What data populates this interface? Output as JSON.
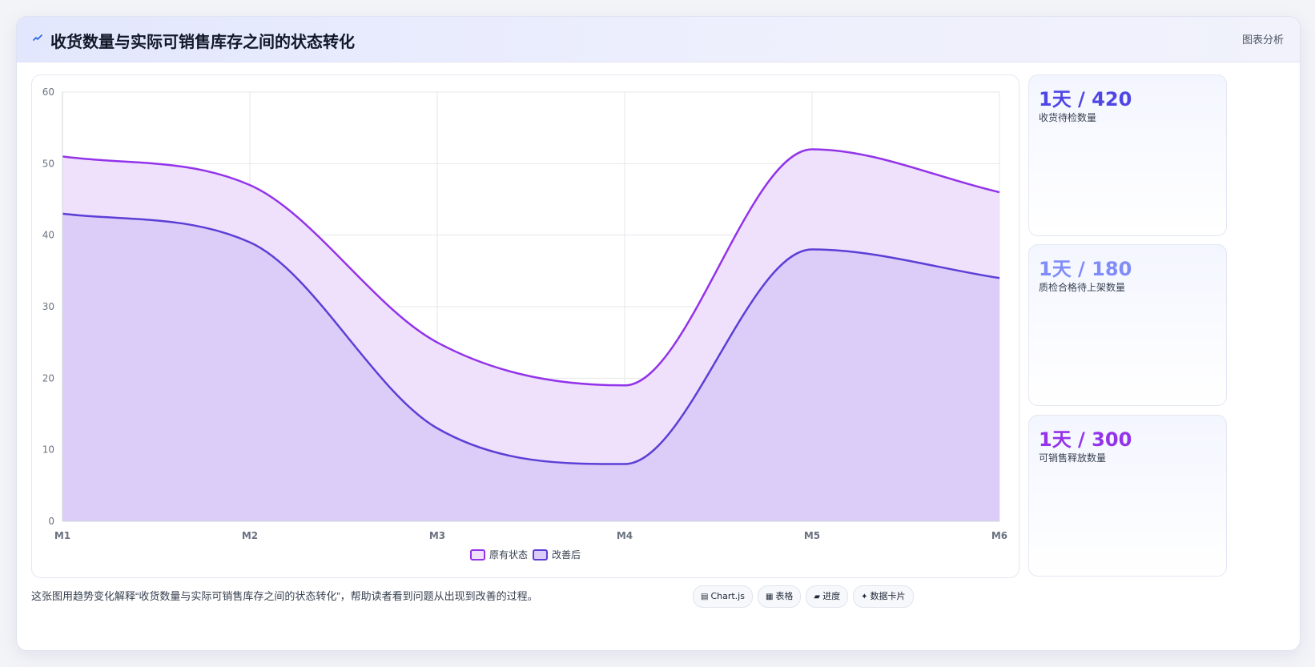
{
  "header": {
    "title": "收货数量与实际可销售库存之间的状态转化",
    "icon": "chart-line-icon",
    "link_label": "图表分析"
  },
  "chart_data": {
    "type": "area",
    "categories": [
      "M1",
      "M2",
      "M3",
      "M4",
      "M5",
      "M6"
    ],
    "series": [
      {
        "name": "原有状态",
        "values": [
          51,
          47,
          25,
          19,
          52,
          46
        ],
        "color": "#9333ea",
        "fill": "#efe1fb"
      },
      {
        "name": "改善后",
        "values": [
          43,
          39,
          13,
          8,
          38,
          34
        ],
        "color": "#5b3fd6",
        "fill": "#dccdf8"
      }
    ],
    "ylim": [
      0,
      60
    ],
    "yticks": [
      0,
      10,
      20,
      30,
      40,
      50,
      60
    ],
    "smooth": true,
    "grid": true,
    "legend": "bottom-center",
    "title": "",
    "xlabel": "",
    "ylabel": ""
  },
  "stats": [
    {
      "value": "1天 / 420",
      "label": "收货待检数量",
      "color": "#4f46e5"
    },
    {
      "value": "1天 / 180",
      "label": "质检合格待上架数量",
      "color": "#818cf8"
    },
    {
      "value": "1天 / 300",
      "label": "可销售释放数量",
      "color": "#9333ea"
    }
  ],
  "footer": {
    "note": "这张图用趋势变化解释“收货数量与实际可销售库存之间的状态转化”，帮助读者看到问题从出现到改善的过程。",
    "tags": [
      {
        "icon": "▤",
        "label": "Chart.js"
      },
      {
        "icon": "▦",
        "label": "表格"
      },
      {
        "icon": "▰",
        "label": "进度"
      },
      {
        "icon": "✦",
        "label": "数据卡片"
      }
    ]
  }
}
